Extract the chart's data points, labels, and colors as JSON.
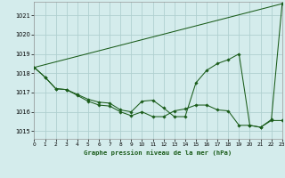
{
  "title": "Graphe pression niveau de la mer (hPa)",
  "bg_color": "#d4ecec",
  "line_color": "#1a5c1a",
  "grid_color": "#b0d0d0",
  "xlim": [
    0,
    23
  ],
  "ylim": [
    1014.6,
    1021.7
  ],
  "yticks": [
    1015,
    1016,
    1017,
    1018,
    1019,
    1020,
    1021
  ],
  "xticks": [
    0,
    1,
    2,
    3,
    4,
    5,
    6,
    7,
    8,
    9,
    10,
    11,
    12,
    13,
    14,
    15,
    16,
    17,
    18,
    19,
    20,
    21,
    22,
    23
  ],
  "upper_line_x": [
    0,
    23
  ],
  "upper_line_y": [
    1018.3,
    1021.6
  ],
  "series1": [
    1018.3,
    1017.8,
    1017.2,
    1017.15,
    1016.85,
    1016.55,
    1016.35,
    1016.3,
    1016.0,
    1015.8,
    1016.0,
    1015.75,
    1015.75,
    1016.05,
    1016.15,
    1016.35,
    1016.35,
    1016.1,
    1016.05,
    1015.3,
    1015.3,
    1015.2,
    1015.55,
    1015.55
  ],
  "series2": [
    1018.3,
    1017.8,
    1017.2,
    1017.15,
    1016.9,
    1016.65,
    1016.5,
    1016.45,
    1016.1,
    1016.0,
    1016.55,
    1016.6,
    1016.2,
    1015.75,
    1015.75,
    1017.5,
    1018.15,
    1018.5,
    1018.7,
    1019.0,
    1015.3,
    1015.2,
    1015.6,
    1021.6
  ]
}
